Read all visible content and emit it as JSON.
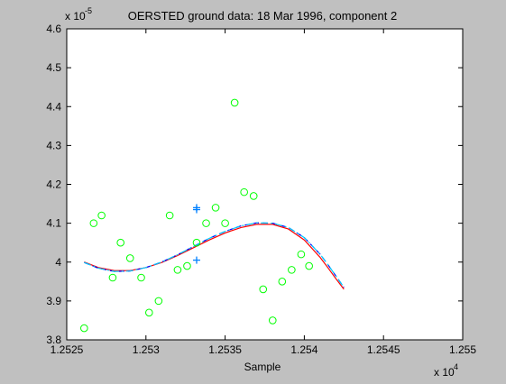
{
  "chart_data": {
    "type": "line",
    "title": "OERSTED ground data: 18 Mar 1996, component 2",
    "xlabel": "Sample",
    "ylabel": "",
    "x_multiplier_label": "x 10",
    "x_multiplier_exp": "4",
    "y_multiplier_label": "x 10",
    "y_multiplier_exp": "-5",
    "xlim": [
      1.2525,
      1.255
    ],
    "ylim": [
      3.8,
      4.6
    ],
    "x_ticks": [
      1.2525,
      1.253,
      1.2535,
      1.254,
      1.2545,
      1.255
    ],
    "x_tick_labels": [
      "1.2525",
      "1.253",
      "1.2535",
      "1.254",
      "1.2545",
      "1.255"
    ],
    "y_ticks": [
      3.8,
      3.9,
      4.0,
      4.1,
      4.2,
      4.3,
      4.4,
      4.5,
      4.6
    ],
    "y_tick_labels": [
      "3.8",
      "3.9",
      "4",
      "4.1",
      "4.2",
      "4.3",
      "4.4",
      "4.5",
      "4.6"
    ],
    "grid": false,
    "colors": {
      "background": "#c0c0c0",
      "axes": "#ffffff",
      "circles": "#00ff00",
      "plus": "#0080ff",
      "red_curve": "#ff0000",
      "blue_curve": "#0000ff",
      "cyan_curve": "#00ccff"
    },
    "series": [
      {
        "marker": "circle",
        "color": "#00ff00",
        "points": [
          [
            1.25261,
            3.83
          ],
          [
            1.25267,
            4.1
          ],
          [
            1.25272,
            4.12
          ],
          [
            1.25279,
            3.96
          ],
          [
            1.25284,
            4.05
          ],
          [
            1.2529,
            4.01
          ],
          [
            1.25297,
            3.96
          ],
          [
            1.25302,
            3.87
          ],
          [
            1.25308,
            3.9
          ],
          [
            1.25315,
            4.12
          ],
          [
            1.2532,
            3.98
          ],
          [
            1.25326,
            3.99
          ],
          [
            1.25332,
            4.05
          ],
          [
            1.25338,
            4.1
          ],
          [
            1.25344,
            4.14
          ],
          [
            1.2535,
            4.1
          ],
          [
            1.25356,
            4.41
          ],
          [
            1.25362,
            4.18
          ],
          [
            1.25368,
            4.17
          ],
          [
            1.25374,
            3.93
          ],
          [
            1.2538,
            3.85
          ],
          [
            1.25386,
            3.95
          ],
          [
            1.25392,
            3.98
          ],
          [
            1.25398,
            4.02
          ],
          [
            1.25403,
            3.99
          ]
        ]
      },
      {
        "marker": "plus",
        "color": "#0080ff",
        "points": [
          [
            1.25332,
            4.14
          ],
          [
            1.25332,
            4.135
          ],
          [
            1.25332,
            4.005
          ]
        ]
      },
      {
        "line": "solid",
        "color": "#ff0000",
        "points": [
          [
            1.25261,
            4.0
          ],
          [
            1.2527,
            3.986
          ],
          [
            1.2528,
            3.978
          ],
          [
            1.2529,
            3.978
          ],
          [
            1.253,
            3.986
          ],
          [
            1.2531,
            3.999
          ],
          [
            1.2532,
            4.017
          ],
          [
            1.2533,
            4.037
          ],
          [
            1.2534,
            4.057
          ],
          [
            1.2535,
            4.075
          ],
          [
            1.2536,
            4.089
          ],
          [
            1.2537,
            4.097
          ],
          [
            1.2538,
            4.097
          ],
          [
            1.2539,
            4.085
          ],
          [
            1.254,
            4.057
          ],
          [
            1.2541,
            4.012
          ],
          [
            1.25415,
            3.985
          ],
          [
            1.2542,
            3.957
          ],
          [
            1.25425,
            3.93
          ]
        ]
      },
      {
        "line": "dashed",
        "color": "#0000ff",
        "points": [
          [
            1.25261,
            3.999
          ],
          [
            1.2527,
            3.984
          ],
          [
            1.2528,
            3.976
          ],
          [
            1.2529,
            3.977
          ],
          [
            1.253,
            3.986
          ],
          [
            1.2531,
            4.0
          ],
          [
            1.2532,
            4.019
          ],
          [
            1.2533,
            4.04
          ],
          [
            1.2534,
            4.061
          ],
          [
            1.2535,
            4.079
          ],
          [
            1.2536,
            4.093
          ],
          [
            1.2537,
            4.101
          ],
          [
            1.2538,
            4.1
          ],
          [
            1.2539,
            4.089
          ],
          [
            1.254,
            4.063
          ],
          [
            1.2541,
            4.02
          ],
          [
            1.25415,
            3.993
          ],
          [
            1.2542,
            3.964
          ],
          [
            1.25425,
            3.935
          ]
        ]
      },
      {
        "line": "dashdot",
        "color": "#00ccff",
        "points": [
          [
            1.25261,
            3.999
          ],
          [
            1.2527,
            3.984
          ],
          [
            1.2528,
            3.976
          ],
          [
            1.2529,
            3.977
          ],
          [
            1.253,
            3.986
          ],
          [
            1.2531,
            4.0
          ],
          [
            1.2532,
            4.019
          ],
          [
            1.2533,
            4.04
          ],
          [
            1.2534,
            4.061
          ],
          [
            1.2535,
            4.079
          ],
          [
            1.2536,
            4.093
          ],
          [
            1.2537,
            4.101
          ],
          [
            1.2538,
            4.1
          ],
          [
            1.2539,
            4.089
          ],
          [
            1.254,
            4.063
          ],
          [
            1.2541,
            4.02
          ],
          [
            1.25415,
            3.993
          ],
          [
            1.2542,
            3.964
          ],
          [
            1.25425,
            3.935
          ]
        ]
      }
    ]
  }
}
